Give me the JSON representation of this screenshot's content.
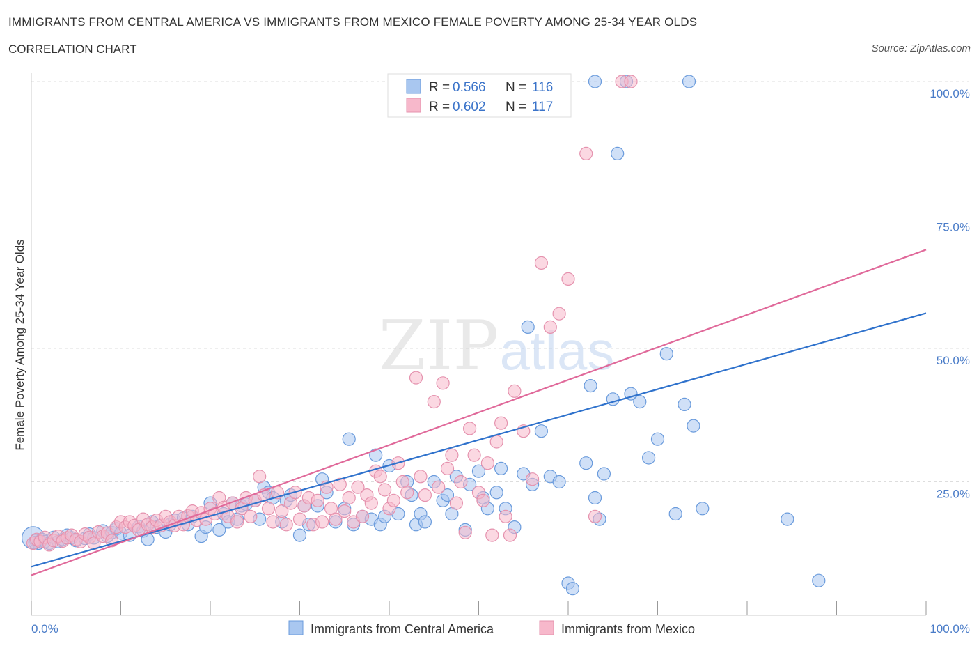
{
  "title": "IMMIGRANTS FROM CENTRAL AMERICA VS IMMIGRANTS FROM MEXICO FEMALE POVERTY AMONG 25-34 YEAR OLDS",
  "subtitle": "CORRELATION CHART",
  "source": "Source: ZipAtlas.com",
  "watermark": {
    "zip": "ZIP",
    "atlas": "atlas"
  },
  "colors": {
    "central_america_fill": "#a9c7f0",
    "central_america_line": "#2f72cc",
    "mexico_fill": "#f7b8cb",
    "mexico_line": "#e0699a",
    "tick_label": "#4a7cc8",
    "grid": "#dddddd"
  },
  "legend": {
    "rows": [
      {
        "r_label": "R = ",
        "r_value": "0.566",
        "n_label": "N = ",
        "n_value": "116"
      },
      {
        "r_label": "R = ",
        "r_value": "0.602",
        "n_label": "N = ",
        "n_value": "117"
      }
    ]
  },
  "chart_data": {
    "type": "scatter",
    "title": "IMMIGRANTS FROM CENTRAL AMERICA VS IMMIGRANTS FROM MEXICO FEMALE POVERTY AMONG 25-34 YEAR OLDS",
    "xlabel": "",
    "ylabel": "Female Poverty Among 25-34 Year Olds",
    "xlim": [
      0,
      100
    ],
    "ylim": [
      0,
      100
    ],
    "x_tick_labels": [
      "0.0%",
      "100.0%"
    ],
    "y_tick_labels": [
      "25.0%",
      "50.0%",
      "75.0%",
      "100.0%"
    ],
    "y_ticks": [
      25,
      50,
      75,
      100
    ],
    "grid": true,
    "legend_position": "top-center",
    "series": [
      {
        "name": "Immigrants from Central America",
        "color": "#a9c7f0",
        "trend": {
          "x": [
            0,
            100
          ],
          "y": [
            9.1,
            56.6
          ]
        },
        "points": [
          [
            0.2,
            14.5
          ],
          [
            0.5,
            14.0
          ],
          [
            0.8,
            13.5
          ],
          [
            1.2,
            14.2
          ],
          [
            1.5,
            13.8
          ],
          [
            2.0,
            13.5
          ],
          [
            2.5,
            14.6
          ],
          [
            3.0,
            13.8
          ],
          [
            3.5,
            14.2
          ],
          [
            4.0,
            15.0
          ],
          [
            4.5,
            14.5
          ],
          [
            5.0,
            14.0
          ],
          [
            6.0,
            14.4
          ],
          [
            6.5,
            15.2
          ],
          [
            7.0,
            14.5
          ],
          [
            8.0,
            15.8
          ],
          [
            8.5,
            14.8
          ],
          [
            9.0,
            15.5
          ],
          [
            9.5,
            16.2
          ],
          [
            10.0,
            15.4
          ],
          [
            11.0,
            15.0
          ],
          [
            12.0,
            16.6
          ],
          [
            12.5,
            15.8
          ],
          [
            13.0,
            14.2
          ],
          [
            13.5,
            17.5
          ],
          [
            14.0,
            16.5
          ],
          [
            15.0,
            15.6
          ],
          [
            15.5,
            17.0
          ],
          [
            16.0,
            17.8
          ],
          [
            17.0,
            18.2
          ],
          [
            17.5,
            17.0
          ],
          [
            18.0,
            18.5
          ],
          [
            19.0,
            14.8
          ],
          [
            19.5,
            16.5
          ],
          [
            20.0,
            21.0
          ],
          [
            21.0,
            16.0
          ],
          [
            21.5,
            19.0
          ],
          [
            22.0,
            17.5
          ],
          [
            22.5,
            21.0
          ],
          [
            23.0,
            18.0
          ],
          [
            23.5,
            20.5
          ],
          [
            24.0,
            20.8
          ],
          [
            25.0,
            21.5
          ],
          [
            25.5,
            18.0
          ],
          [
            26.0,
            24.0
          ],
          [
            26.5,
            23.0
          ],
          [
            27.0,
            22.0
          ],
          [
            28.0,
            17.5
          ],
          [
            28.5,
            21.5
          ],
          [
            29.0,
            22.5
          ],
          [
            30.0,
            15.0
          ],
          [
            30.5,
            20.5
          ],
          [
            31.0,
            17.0
          ],
          [
            32.0,
            20.5
          ],
          [
            32.5,
            25.5
          ],
          [
            33.0,
            23.0
          ],
          [
            34.0,
            17.5
          ],
          [
            35.0,
            20.0
          ],
          [
            35.5,
            33.0
          ],
          [
            36.0,
            17.0
          ],
          [
            37.0,
            18.5
          ],
          [
            38.0,
            18.0
          ],
          [
            38.5,
            30.0
          ],
          [
            39.0,
            17.0
          ],
          [
            39.5,
            18.5
          ],
          [
            40.0,
            28.0
          ],
          [
            41.0,
            19.0
          ],
          [
            42.0,
            25.0
          ],
          [
            42.5,
            22.5
          ],
          [
            43.0,
            17.0
          ],
          [
            43.5,
            19.0
          ],
          [
            44.0,
            17.5
          ],
          [
            45.0,
            25.0
          ],
          [
            46.0,
            21.5
          ],
          [
            46.5,
            22.5
          ],
          [
            47.0,
            19.0
          ],
          [
            47.5,
            26.0
          ],
          [
            48.5,
            16.0
          ],
          [
            49.0,
            24.5
          ],
          [
            50.0,
            27.0
          ],
          [
            50.5,
            22.0
          ],
          [
            51.0,
            20.0
          ],
          [
            52.0,
            23.0
          ],
          [
            52.5,
            27.5
          ],
          [
            53.0,
            20.0
          ],
          [
            54.0,
            16.5
          ],
          [
            55.0,
            26.5
          ],
          [
            55.5,
            54.0
          ],
          [
            56.0,
            24.5
          ],
          [
            57.0,
            34.5
          ],
          [
            58.0,
            26.0
          ],
          [
            59.0,
            25.0
          ],
          [
            60.0,
            6.0
          ],
          [
            60.5,
            5.0
          ],
          [
            62.0,
            28.5
          ],
          [
            62.5,
            43.0
          ],
          [
            63.0,
            22.0
          ],
          [
            63.5,
            18.0
          ],
          [
            64.0,
            26.5
          ],
          [
            65.0,
            40.5
          ],
          [
            65.5,
            86.5
          ],
          [
            67.0,
            41.5
          ],
          [
            68.0,
            40.0
          ],
          [
            69.0,
            29.5
          ],
          [
            70.0,
            33.0
          ],
          [
            71.0,
            49.0
          ],
          [
            72.0,
            19.0
          ],
          [
            73.0,
            39.5
          ],
          [
            74.0,
            35.5
          ],
          [
            75.0,
            20.0
          ],
          [
            63.0,
            100.0
          ],
          [
            66.5,
            100.0
          ],
          [
            73.5,
            100.0
          ],
          [
            84.5,
            18.0
          ],
          [
            88.0,
            6.5
          ],
          [
            0.4,
            13.6
          ]
        ]
      },
      {
        "name": "Immigrants from Mexico",
        "color": "#f7b8cb",
        "trend": {
          "x": [
            0,
            100
          ],
          "y": [
            7.5,
            68.5
          ]
        },
        "points": [
          [
            0.2,
            13.5
          ],
          [
            0.6,
            14.2
          ],
          [
            1.0,
            13.8
          ],
          [
            1.5,
            14.6
          ],
          [
            2.0,
            13.2
          ],
          [
            2.5,
            14.0
          ],
          [
            3.0,
            14.8
          ],
          [
            3.5,
            13.9
          ],
          [
            4.0,
            14.5
          ],
          [
            4.5,
            15.0
          ],
          [
            5.0,
            14.2
          ],
          [
            5.5,
            13.8
          ],
          [
            6.0,
            15.2
          ],
          [
            6.5,
            14.6
          ],
          [
            7.0,
            13.5
          ],
          [
            7.5,
            15.6
          ],
          [
            8.0,
            14.8
          ],
          [
            8.5,
            15.4
          ],
          [
            9.0,
            14.0
          ],
          [
            9.5,
            16.5
          ],
          [
            10.0,
            17.5
          ],
          [
            10.5,
            16.5
          ],
          [
            11.0,
            17.5
          ],
          [
            11.5,
            16.8
          ],
          [
            12.0,
            16.0
          ],
          [
            12.5,
            18.0
          ],
          [
            13.0,
            17.0
          ],
          [
            13.5,
            16.5
          ],
          [
            14.0,
            17.8
          ],
          [
            14.5,
            16.8
          ],
          [
            15.0,
            18.5
          ],
          [
            15.5,
            17.5
          ],
          [
            16.0,
            16.8
          ],
          [
            16.5,
            18.5
          ],
          [
            17.0,
            17.0
          ],
          [
            17.5,
            18.6
          ],
          [
            18.0,
            19.5
          ],
          [
            18.5,
            17.8
          ],
          [
            19.0,
            19.2
          ],
          [
            19.5,
            18.0
          ],
          [
            20.0,
            20.0
          ],
          [
            20.5,
            19.0
          ],
          [
            21.0,
            22.0
          ],
          [
            21.5,
            20.2
          ],
          [
            22.0,
            18.5
          ],
          [
            22.5,
            21.0
          ],
          [
            23.0,
            17.5
          ],
          [
            23.5,
            20.0
          ],
          [
            24.0,
            22.0
          ],
          [
            24.5,
            18.5
          ],
          [
            25.0,
            21.5
          ],
          [
            25.5,
            26.0
          ],
          [
            26.0,
            22.5
          ],
          [
            26.5,
            20.0
          ],
          [
            27.0,
            17.5
          ],
          [
            27.5,
            23.0
          ],
          [
            28.0,
            19.5
          ],
          [
            28.5,
            17.0
          ],
          [
            29.0,
            21.0
          ],
          [
            29.5,
            23.0
          ],
          [
            30.0,
            18.0
          ],
          [
            30.5,
            20.5
          ],
          [
            31.0,
            22.0
          ],
          [
            31.5,
            17.0
          ],
          [
            32.0,
            21.5
          ],
          [
            32.5,
            17.5
          ],
          [
            33.0,
            24.0
          ],
          [
            33.5,
            20.0
          ],
          [
            34.0,
            18.0
          ],
          [
            34.5,
            24.5
          ],
          [
            35.0,
            19.5
          ],
          [
            35.5,
            22.0
          ],
          [
            36.0,
            17.5
          ],
          [
            36.5,
            24.0
          ],
          [
            37.0,
            18.5
          ],
          [
            37.5,
            22.5
          ],
          [
            38.0,
            21.0
          ],
          [
            38.5,
            27.0
          ],
          [
            39.0,
            26.0
          ],
          [
            39.5,
            23.5
          ],
          [
            40.0,
            20.0
          ],
          [
            40.5,
            21.5
          ],
          [
            41.0,
            28.5
          ],
          [
            41.5,
            25.0
          ],
          [
            42.0,
            23.0
          ],
          [
            43.0,
            44.5
          ],
          [
            43.5,
            26.0
          ],
          [
            44.0,
            22.5
          ],
          [
            45.0,
            40.0
          ],
          [
            45.5,
            24.0
          ],
          [
            46.0,
            43.5
          ],
          [
            46.5,
            27.5
          ],
          [
            47.0,
            30.0
          ],
          [
            47.5,
            21.0
          ],
          [
            48.0,
            25.0
          ],
          [
            48.5,
            15.5
          ],
          [
            49.0,
            35.0
          ],
          [
            49.5,
            30.0
          ],
          [
            50.0,
            23.0
          ],
          [
            50.5,
            21.5
          ],
          [
            51.0,
            28.5
          ],
          [
            51.5,
            15.0
          ],
          [
            52.0,
            32.5
          ],
          [
            52.5,
            36.0
          ],
          [
            53.0,
            18.5
          ],
          [
            53.5,
            15.0
          ],
          [
            54.0,
            42.0
          ],
          [
            55.0,
            34.5
          ],
          [
            56.0,
            25.5
          ],
          [
            57.0,
            66.0
          ],
          [
            58.0,
            54.0
          ],
          [
            59.0,
            56.5
          ],
          [
            60.0,
            63.0
          ],
          [
            62.0,
            86.5
          ],
          [
            63.0,
            18.5
          ],
          [
            66.0,
            100.0
          ],
          [
            67.0,
            100.0
          ]
        ]
      }
    ]
  },
  "bottom_legend": [
    {
      "label": "Immigrants from Central America"
    },
    {
      "label": "Immigrants from Mexico"
    }
  ]
}
